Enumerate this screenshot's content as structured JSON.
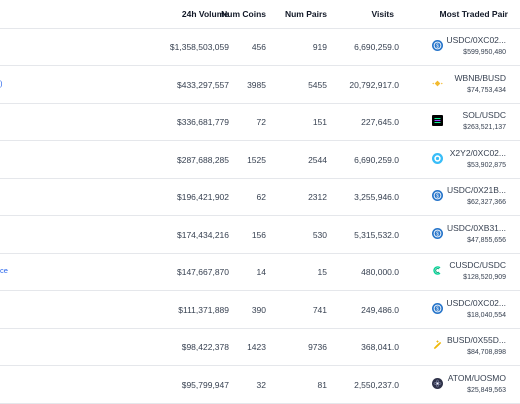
{
  "headers": {
    "volume": "24h Volume",
    "coins": "Num Coins",
    "pairs": "Num Pairs",
    "visits": "Visits",
    "pair": "Most Traded Pair"
  },
  "rows": [
    {
      "volume": "$1,358,503,059",
      "coins": "456",
      "pairs": "919",
      "visits": "6,690,259.0",
      "pair": "USDC/0XC02...",
      "pair_volume": "$599,950,480",
      "icon": "usdc-icon",
      "link": ""
    },
    {
      "volume": "$433,297,557",
      "coins": "3985",
      "pairs": "5455",
      "visits": "20,792,917.0",
      "pair": "WBNB/BUSD",
      "pair_volume": "$74,753,434",
      "icon": "bnb-icon",
      "link": ")"
    },
    {
      "volume": "$336,681,779",
      "coins": "72",
      "pairs": "151",
      "visits": "227,645.0",
      "pair": "SOL/USDC",
      "pair_volume": "$263,521,137",
      "icon": "solana-icon",
      "link": ""
    },
    {
      "volume": "$287,688,285",
      "coins": "1525",
      "pairs": "2544",
      "visits": "6,690,259.0",
      "pair": "X2Y2/0XC02...",
      "pair_volume": "$53,902,875",
      "icon": "x2y2-icon",
      "link": ""
    },
    {
      "volume": "$196,421,902",
      "coins": "62",
      "pairs": "2312",
      "visits": "3,255,946.0",
      "pair": "USDC/0X21B...",
      "pair_volume": "$62,327,366",
      "icon": "usdc-icon",
      "link": ""
    },
    {
      "volume": "$174,434,216",
      "coins": "156",
      "pairs": "530",
      "visits": "5,315,532.0",
      "pair": "USDC/0XB31...",
      "pair_volume": "$47,855,656",
      "icon": "usdc-icon",
      "link": ""
    },
    {
      "volume": "$147,667,870",
      "coins": "14",
      "pairs": "15",
      "visits": "480,000.0",
      "pair": "CUSDC/USDC",
      "pair_volume": "$128,520,909",
      "icon": "cusdc-icon",
      "link": "ce"
    },
    {
      "volume": "$111,371,889",
      "coins": "390",
      "pairs": "741",
      "visits": "249,486.0",
      "pair": "USDC/0XC02...",
      "pair_volume": "$18,040,554",
      "icon": "usdc-icon",
      "link": ""
    },
    {
      "volume": "$98,422,378",
      "coins": "1423",
      "pairs": "9736",
      "visits": "368,041.0",
      "pair": "BUSD/0X55D...",
      "pair_volume": "$84,708,898",
      "icon": "busd-icon",
      "link": ""
    },
    {
      "volume": "$95,799,947",
      "coins": "32",
      "pairs": "81",
      "visits": "2,550,237.0",
      "pair": "ATOM/UOSMO",
      "pair_volume": "$25,849,563",
      "icon": "atom-icon",
      "link": ""
    }
  ]
}
